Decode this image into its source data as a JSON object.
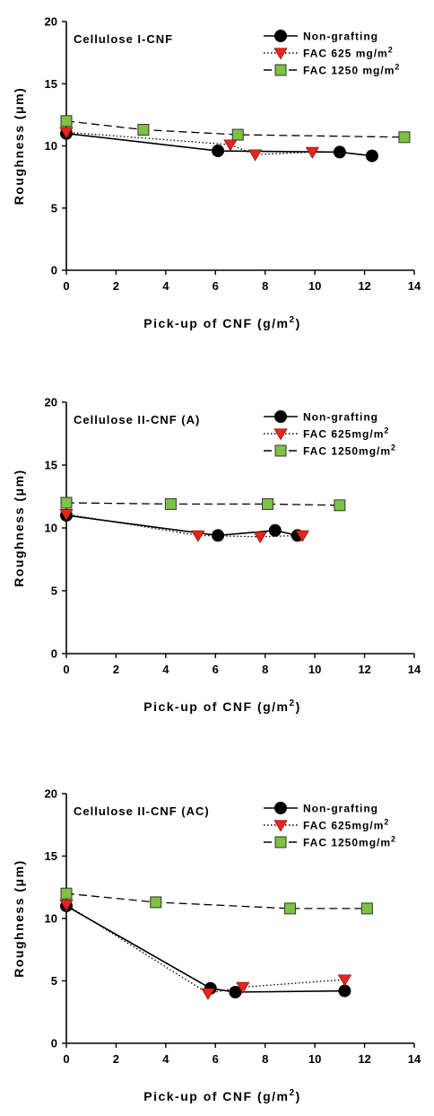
{
  "chart_data": [
    {
      "type": "line",
      "panel_label": "Cellulose I-CNF",
      "xlabel": "Pick-up of CNF (g/m",
      "xlabel_sup": "2",
      "xlabel_end": ")",
      "ylabel": "Roughness (μm)",
      "xlim": [
        0,
        14
      ],
      "ylim": [
        0,
        20
      ],
      "x_ticks": [
        "0",
        "2",
        "4",
        "6",
        "8",
        "10",
        "12",
        "14"
      ],
      "y_ticks": [
        "0",
        "5",
        "10",
        "15",
        "20"
      ],
      "legend_position": "top-right",
      "series": [
        {
          "name": "Non-grafting",
          "unit_sup": "",
          "marker": "circle",
          "dash": "solid",
          "color": "#000000",
          "x": [
            0,
            6.1,
            11.0,
            12.3
          ],
          "y": [
            11.0,
            9.6,
            9.5,
            9.2
          ]
        },
        {
          "name": "FAC 625 mg/m",
          "unit_sup": "2",
          "marker": "triangle-down",
          "dash": "dotted",
          "color": "#e8251c",
          "x": [
            0,
            6.6,
            7.6,
            9.9
          ],
          "y": [
            11.1,
            10.1,
            9.3,
            9.5
          ]
        },
        {
          "name": "FAC 1250 mg/m",
          "unit_sup": "2",
          "marker": "square",
          "dash": "dashed",
          "color": "#7dc242",
          "x": [
            0,
            3.1,
            6.9,
            13.6
          ],
          "y": [
            12.0,
            11.3,
            10.9,
            10.7
          ]
        }
      ]
    },
    {
      "type": "line",
      "panel_label": "Cellulose II-CNF (A)",
      "xlabel": "Pick-up of CNF (g/m",
      "xlabel_sup": "2",
      "xlabel_end": ")",
      "ylabel": "Roughness (μm)",
      "xlim": [
        0,
        14
      ],
      "ylim": [
        0,
        20
      ],
      "x_ticks": [
        "0",
        "2",
        "4",
        "6",
        "8",
        "10",
        "12",
        "14"
      ],
      "y_ticks": [
        "0",
        "5",
        "10",
        "15",
        "20"
      ],
      "legend_position": "top-right",
      "series": [
        {
          "name": "Non-grafting",
          "unit_sup": "",
          "marker": "circle",
          "dash": "solid",
          "color": "#000000",
          "x": [
            0,
            6.1,
            8.4,
            9.3
          ],
          "y": [
            11.0,
            9.4,
            9.8,
            9.4
          ]
        },
        {
          "name": "FAC 625mg/m",
          "unit_sup": "2",
          "marker": "triangle-down",
          "dash": "dotted",
          "color": "#e8251c",
          "x": [
            0,
            5.3,
            7.8,
            9.5
          ],
          "y": [
            11.1,
            9.4,
            9.3,
            9.4
          ]
        },
        {
          "name": "FAC 1250mg/m",
          "unit_sup": "2",
          "marker": "square",
          "dash": "dashed",
          "color": "#7dc242",
          "x": [
            0,
            4.2,
            8.1,
            11.0
          ],
          "y": [
            12.0,
            11.9,
            11.9,
            11.8
          ]
        }
      ]
    },
    {
      "type": "line",
      "panel_label": "Cellulose II-CNF (AC)",
      "xlabel": "Pick-up of CNF (g/m",
      "xlabel_sup": "2",
      "xlabel_end": ")",
      "ylabel": "Roughness (μm)",
      "xlim": [
        0,
        14
      ],
      "ylim": [
        0,
        20
      ],
      "x_ticks": [
        "0",
        "2",
        "4",
        "6",
        "8",
        "10",
        "12",
        "14"
      ],
      "y_ticks": [
        "0",
        "5",
        "10",
        "15",
        "20"
      ],
      "legend_position": "top-right",
      "series": [
        {
          "name": "Non-grafting",
          "unit_sup": "",
          "marker": "circle",
          "dash": "solid",
          "color": "#000000",
          "x": [
            0,
            5.8,
            6.8,
            11.2
          ],
          "y": [
            11.0,
            4.4,
            4.1,
            4.2
          ]
        },
        {
          "name": "FAC 625mg/m",
          "unit_sup": "2",
          "marker": "triangle-down",
          "dash": "dotted",
          "color": "#e8251c",
          "x": [
            0,
            5.7,
            7.1,
            11.2
          ],
          "y": [
            11.1,
            4.0,
            4.5,
            5.1
          ]
        },
        {
          "name": "FAC 1250mg/m",
          "unit_sup": "2",
          "marker": "square",
          "dash": "dashed",
          "color": "#7dc242",
          "x": [
            0,
            3.6,
            9.0,
            12.1
          ],
          "y": [
            12.0,
            11.3,
            10.8,
            10.8
          ]
        }
      ]
    }
  ]
}
